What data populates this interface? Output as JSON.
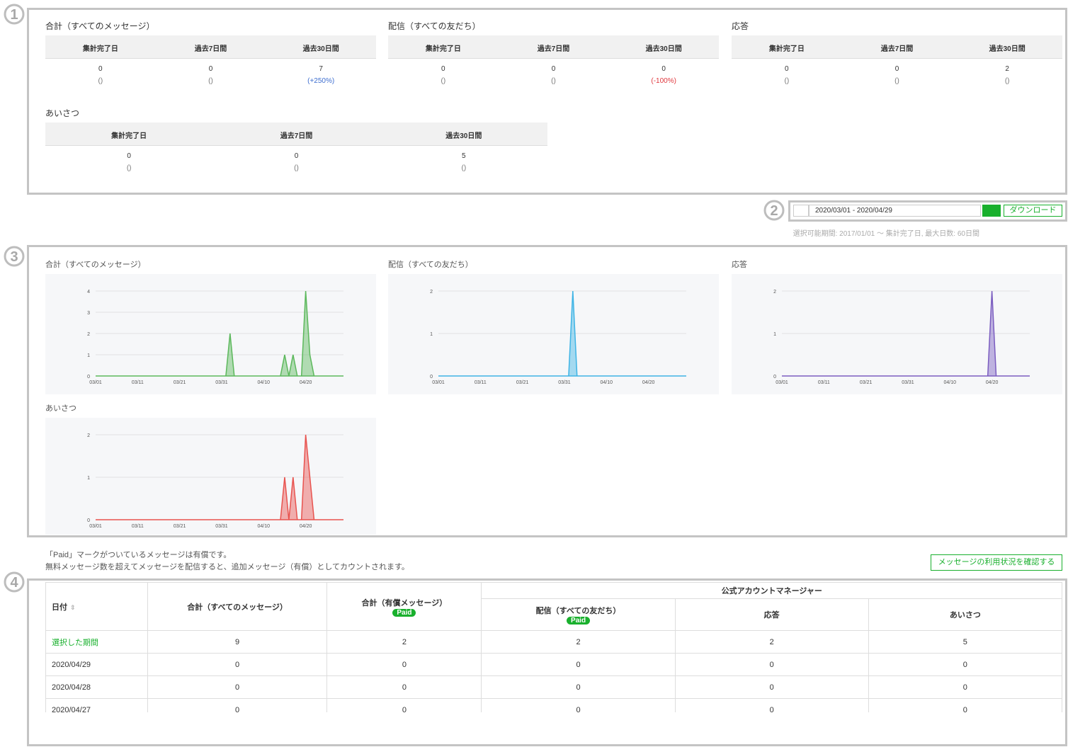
{
  "markers": [
    "1",
    "2",
    "3",
    "4"
  ],
  "summary": [
    {
      "title": "合計（すべてのメッセージ）",
      "headers": [
        "集計完了日",
        "過去7日間",
        "過去30日間"
      ],
      "values": [
        0,
        0,
        7
      ],
      "changes": [
        "()",
        "()",
        "(+250%)"
      ]
    },
    {
      "title": "配信（すべての友だち）",
      "headers": [
        "集計完了日",
        "過去7日間",
        "過去30日間"
      ],
      "values": [
        0,
        0,
        0
      ],
      "changes": [
        "()",
        "()",
        "(-100%)"
      ]
    },
    {
      "title": "応答",
      "headers": [
        "集計完了日",
        "過去7日間",
        "過去30日間"
      ],
      "values": [
        0,
        0,
        2
      ],
      "changes": [
        "()",
        "()",
        "()"
      ]
    },
    {
      "title": "あいさつ",
      "headers": [
        "集計完了日",
        "過去7日間",
        "過去30日間"
      ],
      "values": [
        0,
        0,
        5
      ],
      "changes": [
        "()",
        "()",
        "()"
      ]
    }
  ],
  "date_range": "2020/03/01 - 2020/04/29",
  "download": "ダウンロード",
  "period_note": "選択可能期間: 2017/01/01 ～ 集計完了日, 最大日数: 60日間",
  "chart_data": [
    {
      "type": "area",
      "title": "合計（すべてのメッセージ）",
      "color": "#5cb85c",
      "ylim": [
        0,
        4
      ],
      "yticks": [
        0,
        1,
        2,
        3,
        4
      ],
      "grid": true,
      "categories": [
        "03/01",
        null,
        null,
        null,
        null,
        null,
        null,
        null,
        null,
        null,
        "03/11",
        null,
        null,
        null,
        null,
        null,
        null,
        null,
        null,
        null,
        "03/21",
        null,
        null,
        null,
        null,
        null,
        null,
        null,
        null,
        null,
        "03/31",
        null,
        null,
        null,
        null,
        null,
        null,
        null,
        null,
        null,
        "04/10",
        null,
        null,
        null,
        null,
        null,
        null,
        null,
        null,
        null,
        "04/20",
        null,
        null,
        null,
        null,
        null,
        null,
        null,
        null,
        null
      ],
      "values": [
        0,
        0,
        0,
        0,
        0,
        0,
        0,
        0,
        0,
        0,
        0,
        0,
        0,
        0,
        0,
        0,
        0,
        0,
        0,
        0,
        0,
        0,
        0,
        0,
        0,
        0,
        0,
        0,
        0,
        0,
        0,
        0,
        2,
        0,
        0,
        0,
        0,
        0,
        0,
        0,
        0,
        0,
        0,
        0,
        0,
        1,
        0,
        1,
        0,
        0,
        4,
        1,
        0,
        0,
        0,
        0,
        0,
        0,
        0,
        0
      ]
    },
    {
      "type": "area",
      "title": "配信（すべての友だち）",
      "color": "#3fb4e5",
      "ylim": [
        0,
        2
      ],
      "yticks": [
        0,
        1,
        2
      ],
      "grid": true,
      "categories": [
        "03/01",
        null,
        null,
        null,
        null,
        null,
        null,
        null,
        null,
        null,
        "03/11",
        null,
        null,
        null,
        null,
        null,
        null,
        null,
        null,
        null,
        "03/21",
        null,
        null,
        null,
        null,
        null,
        null,
        null,
        null,
        null,
        "03/31",
        null,
        null,
        null,
        null,
        null,
        null,
        null,
        null,
        null,
        "04/10",
        null,
        null,
        null,
        null,
        null,
        null,
        null,
        null,
        null,
        "04/20",
        null,
        null,
        null,
        null,
        null,
        null,
        null,
        null,
        null
      ],
      "values": [
        0,
        0,
        0,
        0,
        0,
        0,
        0,
        0,
        0,
        0,
        0,
        0,
        0,
        0,
        0,
        0,
        0,
        0,
        0,
        0,
        0,
        0,
        0,
        0,
        0,
        0,
        0,
        0,
        0,
        0,
        0,
        0,
        2,
        0,
        0,
        0,
        0,
        0,
        0,
        0,
        0,
        0,
        0,
        0,
        0,
        0,
        0,
        0,
        0,
        0,
        0,
        0,
        0,
        0,
        0,
        0,
        0,
        0,
        0,
        0
      ]
    },
    {
      "type": "area",
      "title": "応答",
      "color": "#7b5dc0",
      "ylim": [
        0,
        2
      ],
      "yticks": [
        0,
        1,
        2
      ],
      "grid": true,
      "categories": [
        "03/01",
        null,
        null,
        null,
        null,
        null,
        null,
        null,
        null,
        null,
        "03/11",
        null,
        null,
        null,
        null,
        null,
        null,
        null,
        null,
        null,
        "03/21",
        null,
        null,
        null,
        null,
        null,
        null,
        null,
        null,
        null,
        "03/31",
        null,
        null,
        null,
        null,
        null,
        null,
        null,
        null,
        null,
        "04/10",
        null,
        null,
        null,
        null,
        null,
        null,
        null,
        null,
        null,
        "04/20",
        null,
        null,
        null,
        null,
        null,
        null,
        null,
        null,
        null
      ],
      "values": [
        0,
        0,
        0,
        0,
        0,
        0,
        0,
        0,
        0,
        0,
        0,
        0,
        0,
        0,
        0,
        0,
        0,
        0,
        0,
        0,
        0,
        0,
        0,
        0,
        0,
        0,
        0,
        0,
        0,
        0,
        0,
        0,
        0,
        0,
        0,
        0,
        0,
        0,
        0,
        0,
        0,
        0,
        0,
        0,
        0,
        0,
        0,
        0,
        0,
        0,
        2,
        0,
        0,
        0,
        0,
        0,
        0,
        0,
        0,
        0
      ]
    },
    {
      "type": "area",
      "title": "あいさつ",
      "color": "#e8534f",
      "ylim": [
        0,
        2
      ],
      "yticks": [
        0,
        1,
        2
      ],
      "grid": true,
      "categories": [
        "03/01",
        null,
        null,
        null,
        null,
        null,
        null,
        null,
        null,
        null,
        "03/11",
        null,
        null,
        null,
        null,
        null,
        null,
        null,
        null,
        null,
        "03/21",
        null,
        null,
        null,
        null,
        null,
        null,
        null,
        null,
        null,
        "03/31",
        null,
        null,
        null,
        null,
        null,
        null,
        null,
        null,
        null,
        "04/10",
        null,
        null,
        null,
        null,
        null,
        null,
        null,
        null,
        null,
        "04/20",
        null,
        null,
        null,
        null,
        null,
        null,
        null,
        null,
        null
      ],
      "values": [
        0,
        0,
        0,
        0,
        0,
        0,
        0,
        0,
        0,
        0,
        0,
        0,
        0,
        0,
        0,
        0,
        0,
        0,
        0,
        0,
        0,
        0,
        0,
        0,
        0,
        0,
        0,
        0,
        0,
        0,
        0,
        0,
        0,
        0,
        0,
        0,
        0,
        0,
        0,
        0,
        0,
        0,
        0,
        0,
        0,
        1,
        0,
        1,
        0,
        0,
        2,
        1,
        0,
        0,
        0,
        0,
        0,
        0,
        0,
        0
      ]
    }
  ],
  "notes": [
    "「Paid」マークがついているメッセージは有償です。",
    "無料メッセージ数を超えてメッセージを配信すると、追加メッセージ（有償）としてカウントされます。"
  ],
  "usage_button": "メッセージの利用状況を確認する",
  "table": {
    "group_header": "公式アカウントマネージャー",
    "headers": [
      {
        "text": "日付"
      },
      {
        "text": "合計（すべてのメッセージ）"
      },
      {
        "text": "合計（有償メッセージ）",
        "badge": "Paid"
      },
      {
        "text": "配信（すべての友だち）",
        "badge": "Paid"
      },
      {
        "text": "応答"
      },
      {
        "text": "あいさつ"
      }
    ],
    "rows": [
      [
        "選択した期間",
        9,
        2,
        2,
        2,
        5
      ],
      [
        "2020/04/29",
        0,
        0,
        0,
        0,
        0
      ],
      [
        "2020/04/28",
        0,
        0,
        0,
        0,
        0
      ],
      [
        "2020/04/27",
        0,
        0,
        0,
        0,
        0
      ]
    ]
  }
}
